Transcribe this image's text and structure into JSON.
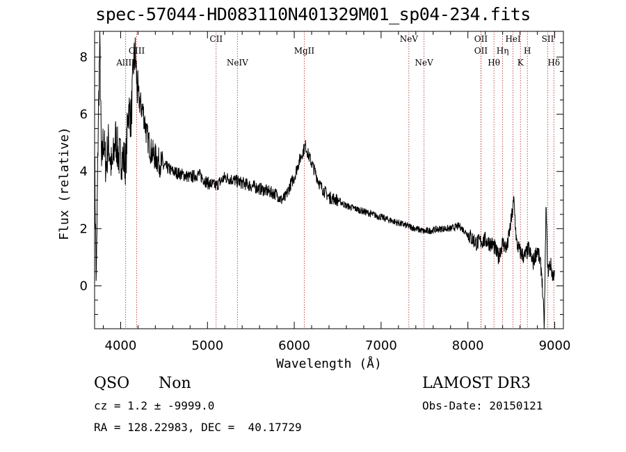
{
  "header": {
    "title": "spec-57044-HD083110N401329M01_sp04-234.fits"
  },
  "chart_data": {
    "type": "line",
    "title": "spec-57044-HD083110N401329M01_sp04-234.fits",
    "xlabel": "Wavelength (Å)",
    "ylabel": "Flux (relative)",
    "xlim": [
      3700,
      9100
    ],
    "ylim": [
      -1.5,
      8.9
    ],
    "xticks": [
      4000,
      5000,
      6000,
      7000,
      8000,
      9000
    ],
    "yticks": [
      0,
      2,
      4,
      6,
      8
    ],
    "grid": false,
    "series": [
      {
        "name": "spectrum",
        "x": [
          3700,
          3720,
          3740,
          3760,
          3780,
          3800,
          3830,
          3860,
          3900,
          3940,
          3980,
          4020,
          4060,
          4090,
          4120,
          4150,
          4170,
          4190,
          4220,
          4260,
          4300,
          4350,
          4400,
          4450,
          4500,
          4600,
          4700,
          4800,
          4900,
          5000,
          5100,
          5200,
          5300,
          5400,
          5500,
          5600,
          5700,
          5800,
          5850,
          5900,
          5950,
          6000,
          6050,
          6100,
          6130,
          6160,
          6200,
          6250,
          6300,
          6400,
          6500,
          6600,
          6700,
          6800,
          6900,
          7000,
          7100,
          7200,
          7300,
          7400,
          7500,
          7600,
          7700,
          7800,
          7900,
          8000,
          8100,
          8200,
          8300,
          8350,
          8400,
          8450,
          8500,
          8530,
          8560,
          8600,
          8650,
          8700,
          8750,
          8800,
          8850,
          8880,
          8900,
          8920,
          8950,
          8980,
          9000
        ],
        "y": [
          4.5,
          0,
          5.2,
          8.5,
          4.0,
          5.2,
          4.2,
          5.0,
          4.0,
          5.2,
          4.5,
          4.5,
          4.3,
          6.3,
          5.8,
          7.8,
          8.1,
          6.9,
          6.4,
          6.1,
          5.3,
          4.7,
          4.5,
          4.3,
          4.2,
          4.0,
          3.9,
          3.8,
          3.9,
          3.6,
          3.5,
          3.8,
          3.7,
          3.6,
          3.5,
          3.4,
          3.3,
          3.2,
          3.0,
          3.1,
          3.5,
          3.8,
          4.3,
          4.7,
          4.9,
          4.6,
          4.3,
          3.9,
          3.5,
          3.1,
          3.0,
          2.8,
          2.7,
          2.6,
          2.5,
          2.4,
          2.3,
          2.2,
          2.1,
          2.0,
          1.9,
          1.95,
          2.0,
          2.0,
          2.1,
          1.8,
          1.5,
          1.6,
          1.4,
          1.0,
          1.5,
          1.3,
          2.3,
          3.0,
          1.5,
          1.2,
          1.0,
          1.3,
          0.8,
          1.3,
          0.5,
          -1.5,
          2.8,
          0.5,
          0.8,
          0.3,
          0.6
        ]
      }
    ],
    "lines": [
      {
        "label": "AlIII",
        "x": 4058,
        "row": "lower"
      },
      {
        "label": "CIII",
        "x": 4185,
        "row": "upper"
      },
      {
        "label": "CII",
        "x": 5100,
        "row": "upper"
      },
      {
        "label": "NeIV",
        "x": 5345,
        "row": "lower"
      },
      {
        "label": "MgII",
        "x": 6115,
        "row": "lower"
      },
      {
        "label": "NeV",
        "x": 7320,
        "row": "upper"
      },
      {
        "label": "NeV",
        "x": 7495,
        "row": "lower"
      },
      {
        "label": "OII",
        "x": 8150,
        "row": "upper"
      },
      {
        "label": "OII",
        "x": 8150,
        "row": "lower"
      },
      {
        "label": "Hθ",
        "x": 8300,
        "row": "lowest"
      },
      {
        "label": "Hη",
        "x": 8400,
        "row": "lower"
      },
      {
        "label": "HeI",
        "x": 8520,
        "row": "upper"
      },
      {
        "label": "K",
        "x": 8605,
        "row": "lowest"
      },
      {
        "label": "H",
        "x": 8685,
        "row": "lower"
      },
      {
        "label": "SII",
        "x": 8920,
        "row": "upper"
      },
      {
        "label": "Hδ",
        "x": 8990,
        "row": "lowest"
      }
    ]
  },
  "info": {
    "class": "QSO",
    "subclass": "Non",
    "cz": "cz = 1.2 ± -9999.0",
    "radec": "RA = 128.22983, DEC =  40.17729",
    "survey": "LAMOST DR3",
    "obsdate": "Obs-Date: 20150121"
  }
}
